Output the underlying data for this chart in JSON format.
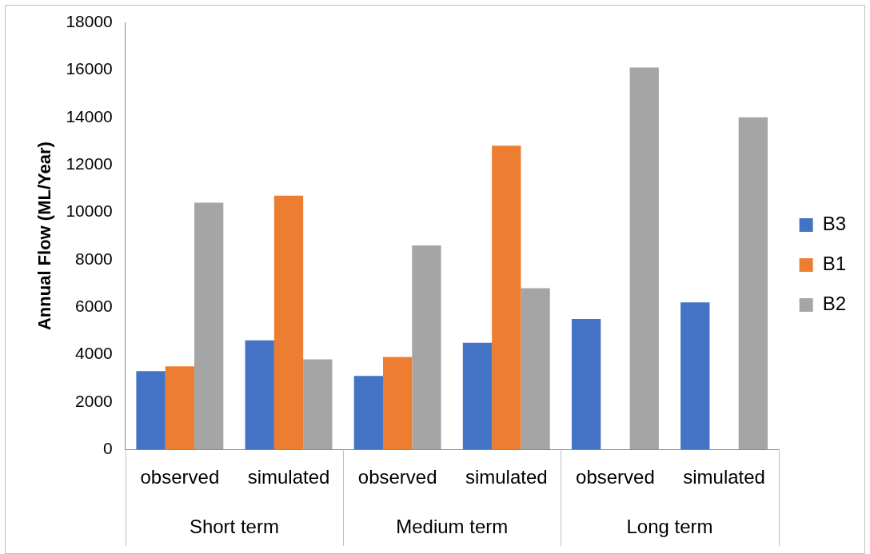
{
  "chart_data": {
    "type": "bar",
    "ylabel": "Annual Flow (ML/Year)",
    "categories": [
      "observed",
      "simulated",
      "observed",
      "simulated",
      "observed",
      "simulated"
    ],
    "annotations": [
      "Short term",
      "Medium term",
      "Long term"
    ],
    "series": [
      {
        "name": "B3",
        "color": "#4472c4",
        "values": [
          3300,
          4600,
          3100,
          4500,
          5500,
          6200
        ]
      },
      {
        "name": "B1",
        "color": "#ed7d31",
        "values": [
          3500,
          10700,
          3900,
          12800,
          null,
          null
        ]
      },
      {
        "name": "B2",
        "color": "#a5a5a5",
        "values": [
          10400,
          3800,
          8600,
          6800,
          16100,
          14000
        ]
      }
    ],
    "ylim": [
      0,
      18000
    ],
    "yticks": [
      0,
      2000,
      4000,
      6000,
      8000,
      10000,
      12000,
      14000,
      16000,
      18000
    ],
    "grid": false,
    "legend": "right"
  }
}
